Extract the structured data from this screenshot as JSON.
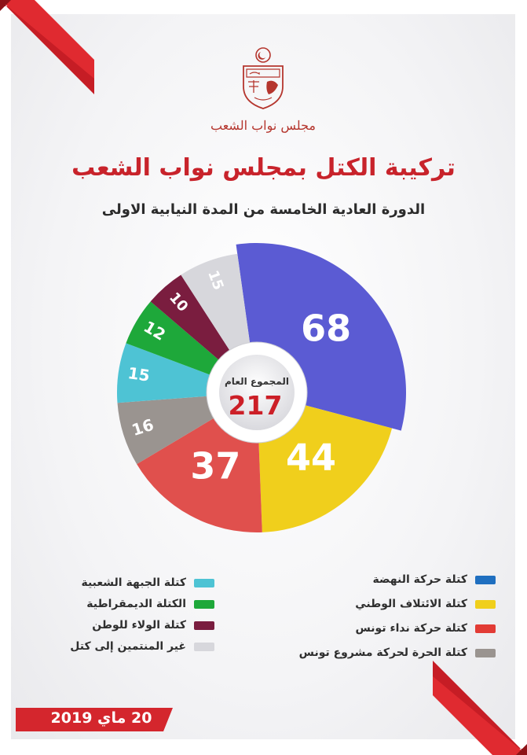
{
  "header": {
    "org_name": "مجلس نواب الشعب",
    "title": "تركيبة الكتل بمجلس نواب الشعب",
    "subtitle": "الدورة العادية الخامسة من المدة النيابية الاولى"
  },
  "center": {
    "label": "المجموع العام",
    "total": "217"
  },
  "chart_data": {
    "type": "pie",
    "title": "تركيبة الكتل بمجلس نواب الشعب",
    "total": 217,
    "series": [
      {
        "name": "كتلة حركة النهضة",
        "value": 68,
        "color": "#5b5bd3"
      },
      {
        "name": "كتلة الائتلاف الوطني",
        "value": 44,
        "color": "#f0cf1c"
      },
      {
        "name": "كتلة حركة نداء تونس",
        "value": 37,
        "color": "#e0504d"
      },
      {
        "name": "كتلة الحرة لحركة مشروع تونس",
        "value": 16,
        "color": "#9a9490"
      },
      {
        "name": "كتلة الجبهة الشعبية",
        "value": 15,
        "color": "#4ec3d4"
      },
      {
        "name": "الكتلة الديمقراطية",
        "value": 12,
        "color": "#1ea83a"
      },
      {
        "name": "كتلة الولاء للوطن",
        "value": 10,
        "color": "#7a1d3f"
      },
      {
        "name": "غير المنتمين إلى كتل",
        "value": 15,
        "color": "#d7d7dc"
      }
    ]
  },
  "legend": {
    "right": [
      {
        "label": "كتلة حركة النهضة",
        "color": "#1f6fc0"
      },
      {
        "label": "كتلة الائتلاف الوطني",
        "color": "#f0cf1c"
      },
      {
        "label": "كتلة حركة نداء تونس",
        "color": "#e23b35"
      },
      {
        "label": "كتلة الحرة لحركة مشروع تونس",
        "color": "#9a9490"
      }
    ],
    "left": [
      {
        "label": "كتلة الجبهة الشعبية",
        "color": "#4ec3d4"
      },
      {
        "label": "الكتلة الديمقراطية",
        "color": "#1ea83a"
      },
      {
        "label": "كتلة الولاء للوطن",
        "color": "#7a1d3f"
      },
      {
        "label": "غير المنتمين إلى كتل",
        "color": "#d7d7dc"
      }
    ]
  },
  "footer": {
    "date": "20 ماي 2019"
  }
}
